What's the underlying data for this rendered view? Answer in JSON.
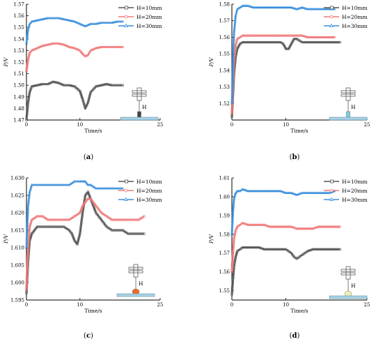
{
  "colors": {
    "h10": "#555555",
    "h20": "#f07878",
    "h30": "#3a8fdc",
    "axis": "#000000",
    "plate": "#a6d2e6",
    "sensor_a": "#444444",
    "sensor_b": "#7fd0e8",
    "sensor_c": "#f06a2a",
    "sensor_d": "#eef0b8"
  },
  "chart_data": [
    {
      "type": "line",
      "panel_label": "(a)",
      "xlabel": "Time/s",
      "ylabel": "P/V",
      "xlim": [
        0,
        25
      ],
      "ylim": [
        1.47,
        1.57
      ],
      "xticks": [
        "0",
        "10",
        "25"
      ],
      "yticks": [
        "1.47",
        "1.48",
        "1.49",
        "1.50",
        "1.51",
        "1.52",
        "1.53",
        "1.54",
        "1.55",
        "1.56",
        "1.57"
      ],
      "inset_label": "H",
      "legend_position": "top-right",
      "sensor_icon": "sensor_a",
      "series": [
        {
          "name": "H=10mm",
          "color_key": "h10",
          "marker": "square",
          "x": [
            0,
            0.3,
            0.6,
            1,
            2,
            3,
            4,
            5,
            6,
            7,
            8,
            9,
            10,
            10.5,
            11,
            11.5,
            12,
            13,
            14,
            15,
            16,
            17,
            18
          ],
          "y": [
            1.47,
            1.485,
            1.494,
            1.499,
            1.5,
            1.501,
            1.501,
            1.503,
            1.502,
            1.5,
            1.5,
            1.499,
            1.495,
            1.488,
            1.48,
            1.485,
            1.494,
            1.499,
            1.5,
            1.501,
            1.5,
            1.5,
            1.5
          ]
        },
        {
          "name": "H=20mm",
          "color_key": "h20",
          "marker": "circle",
          "x": [
            0,
            0.3,
            0.6,
            1,
            2,
            3,
            4,
            5,
            6,
            7,
            8,
            9,
            10,
            10.5,
            11,
            11.5,
            12,
            13,
            14,
            15,
            16,
            17,
            18
          ],
          "y": [
            1.512,
            1.522,
            1.528,
            1.53,
            1.532,
            1.534,
            1.535,
            1.536,
            1.536,
            1.535,
            1.533,
            1.532,
            1.53,
            1.527,
            1.525,
            1.526,
            1.53,
            1.532,
            1.533,
            1.533,
            1.533,
            1.533,
            1.533
          ]
        },
        {
          "name": "H=30mm",
          "color_key": "h30",
          "marker": "triangle",
          "x": [
            0,
            0.3,
            0.6,
            1,
            2,
            3,
            4,
            5,
            6,
            7,
            8,
            9,
            10,
            10.5,
            11,
            11.5,
            12,
            13,
            14,
            15,
            16,
            17,
            18
          ],
          "y": [
            1.536,
            1.548,
            1.553,
            1.555,
            1.556,
            1.557,
            1.558,
            1.558,
            1.558,
            1.557,
            1.556,
            1.555,
            1.553,
            1.552,
            1.551,
            1.552,
            1.553,
            1.553,
            1.554,
            1.554,
            1.554,
            1.555,
            1.555
          ]
        }
      ]
    },
    {
      "type": "line",
      "panel_label": "(b)",
      "xlabel": "Time/s",
      "ylabel": "P/V",
      "xlim": [
        0,
        25
      ],
      "ylim": [
        1.51,
        1.58
      ],
      "xticks": [
        "0",
        "10",
        "25"
      ],
      "yticks": [
        "1.52",
        "1.53",
        "1.54",
        "1.55",
        "1.56",
        "1.57",
        "1.58"
      ],
      "inset_label": "H",
      "legend_position": "top-right",
      "sensor_icon": "sensor_b",
      "series": [
        {
          "name": "H=10mm",
          "color_key": "h10",
          "marker": "square",
          "x": [
            0,
            0.2,
            0.4,
            0.7,
            1,
            1.5,
            2,
            3,
            4,
            5,
            6,
            7,
            8,
            9,
            9.5,
            10,
            10.5,
            11,
            11.5,
            12,
            13,
            14,
            15,
            16,
            17,
            18,
            19,
            20
          ],
          "y": [
            1.512,
            1.525,
            1.538,
            1.548,
            1.553,
            1.556,
            1.557,
            1.557,
            1.557,
            1.557,
            1.557,
            1.557,
            1.557,
            1.557,
            1.556,
            1.553,
            1.553,
            1.556,
            1.559,
            1.559,
            1.557,
            1.557,
            1.557,
            1.557,
            1.557,
            1.557,
            1.557,
            1.557
          ]
        },
        {
          "name": "H=20mm",
          "color_key": "h20",
          "marker": "circle",
          "x": [
            0,
            0.2,
            0.4,
            0.7,
            1,
            1.5,
            2,
            3,
            4,
            5,
            6,
            7,
            8,
            9,
            10,
            11,
            12,
            13,
            14,
            15,
            16,
            17,
            18,
            19
          ],
          "y": [
            1.514,
            1.53,
            1.545,
            1.555,
            1.559,
            1.56,
            1.561,
            1.561,
            1.561,
            1.561,
            1.561,
            1.561,
            1.561,
            1.561,
            1.561,
            1.561,
            1.561,
            1.561,
            1.56,
            1.56,
            1.56,
            1.56,
            1.56,
            1.56
          ]
        },
        {
          "name": "H=30mm",
          "color_key": "h30",
          "marker": "triangle",
          "x": [
            0,
            0.2,
            0.4,
            0.7,
            1,
            1.5,
            2,
            3,
            4,
            5,
            6,
            7,
            8,
            9,
            10,
            11,
            12,
            13,
            14,
            15,
            16,
            17,
            18,
            19
          ],
          "y": [
            1.52,
            1.545,
            1.563,
            1.573,
            1.577,
            1.578,
            1.579,
            1.579,
            1.578,
            1.578,
            1.578,
            1.578,
            1.578,
            1.578,
            1.578,
            1.578,
            1.577,
            1.578,
            1.577,
            1.577,
            1.577,
            1.577,
            1.577,
            1.577
          ]
        }
      ]
    },
    {
      "type": "line",
      "panel_label": "(c)",
      "xlabel": "Time/s",
      "ylabel": "P/V",
      "xlim": [
        0,
        25
      ],
      "ylim": [
        1.595,
        1.63
      ],
      "xticks": [
        "0",
        "10",
        "25"
      ],
      "yticks": [
        "1.595",
        "1.600",
        "1.605",
        "1.610",
        "1.615",
        "1.620",
        "1.625",
        "1.630"
      ],
      "inset_label": "H",
      "legend_position": "top-right",
      "sensor_icon": "sensor_c",
      "series": [
        {
          "name": "H=10mm",
          "color_key": "h10",
          "marker": "square",
          "x": [
            0,
            0.3,
            0.6,
            1,
            2,
            3,
            4,
            5,
            6,
            7,
            8,
            8.5,
            9,
            9.5,
            10,
            10.5,
            11,
            11.5,
            12,
            13,
            14,
            15,
            16,
            17,
            18,
            19,
            20,
            21,
            22
          ],
          "y": [
            1.597,
            1.606,
            1.612,
            1.614,
            1.616,
            1.616,
            1.616,
            1.616,
            1.616,
            1.616,
            1.615,
            1.614,
            1.612,
            1.611,
            1.614,
            1.62,
            1.625,
            1.626,
            1.624,
            1.62,
            1.618,
            1.616,
            1.615,
            1.615,
            1.615,
            1.614,
            1.614,
            1.614,
            1.614
          ]
        },
        {
          "name": "H=20mm",
          "color_key": "h20",
          "marker": "circle",
          "x": [
            0,
            0.3,
            0.6,
            1,
            2,
            3,
            4,
            5,
            6,
            7,
            8,
            9,
            10,
            10.5,
            11,
            11.5,
            12,
            13,
            14,
            15,
            16,
            17,
            18,
            19,
            20,
            21,
            22
          ],
          "y": [
            1.598,
            1.61,
            1.616,
            1.618,
            1.619,
            1.619,
            1.618,
            1.618,
            1.618,
            1.618,
            1.618,
            1.619,
            1.62,
            1.622,
            1.623,
            1.624,
            1.624,
            1.622,
            1.62,
            1.619,
            1.618,
            1.618,
            1.618,
            1.618,
            1.618,
            1.618,
            1.619
          ]
        },
        {
          "name": "H=30mm",
          "color_key": "h30",
          "marker": "triangle",
          "x": [
            0,
            0.3,
            0.6,
            1,
            2,
            3,
            4,
            5,
            6,
            7,
            8,
            9,
            10,
            10.5,
            11,
            11.5,
            12,
            13,
            14,
            15,
            16,
            17,
            18
          ],
          "y": [
            1.61,
            1.622,
            1.626,
            1.628,
            1.628,
            1.628,
            1.628,
            1.628,
            1.628,
            1.628,
            1.628,
            1.629,
            1.629,
            1.629,
            1.629,
            1.628,
            1.628,
            1.627,
            1.627,
            1.627,
            1.627,
            1.627,
            1.627
          ]
        }
      ]
    },
    {
      "type": "line",
      "panel_label": "(d)",
      "xlabel": "Time/s",
      "ylabel": "P/V",
      "xlim": [
        0,
        25
      ],
      "ylim": [
        1.545,
        1.61
      ],
      "xticks": [
        "0",
        "10",
        "25"
      ],
      "yticks": [
        "1.55",
        "1.56",
        "1.57",
        "1.58",
        "1.59",
        "1.60",
        "1.61"
      ],
      "inset_label": "H",
      "legend_position": "top-right",
      "sensor_icon": "sensor_d",
      "series": [
        {
          "name": "H=10mm",
          "color_key": "h10",
          "marker": "square",
          "x": [
            0,
            0.2,
            0.4,
            0.7,
            1,
            1.5,
            2,
            3,
            4,
            5,
            6,
            7,
            8,
            9,
            10,
            11,
            11.5,
            12,
            13,
            14,
            15,
            16,
            17,
            18,
            19,
            20
          ],
          "y": [
            1.548,
            1.556,
            1.563,
            1.568,
            1.571,
            1.572,
            1.573,
            1.573,
            1.573,
            1.573,
            1.572,
            1.572,
            1.572,
            1.572,
            1.572,
            1.57,
            1.568,
            1.567,
            1.569,
            1.571,
            1.572,
            1.572,
            1.572,
            1.572,
            1.572,
            1.572
          ]
        },
        {
          "name": "H=20mm",
          "color_key": "h20",
          "marker": "circle",
          "x": [
            0,
            0.2,
            0.4,
            0.7,
            1,
            1.5,
            2,
            3,
            4,
            5,
            6,
            7,
            8,
            9,
            10,
            11,
            12,
            13,
            14,
            15,
            16,
            17,
            18,
            19,
            20
          ],
          "y": [
            1.56,
            1.57,
            1.578,
            1.582,
            1.584,
            1.585,
            1.586,
            1.585,
            1.585,
            1.585,
            1.585,
            1.584,
            1.584,
            1.584,
            1.584,
            1.584,
            1.583,
            1.583,
            1.583,
            1.583,
            1.584,
            1.584,
            1.584,
            1.584,
            1.584
          ]
        },
        {
          "name": "H=30mm",
          "color_key": "h30",
          "marker": "triangle",
          "x": [
            0,
            0.2,
            0.4,
            0.7,
            1,
            1.5,
            2,
            3,
            4,
            5,
            6,
            7,
            8,
            9,
            10,
            11,
            12,
            13,
            14,
            15,
            16,
            17,
            18,
            19
          ],
          "y": [
            1.58,
            1.592,
            1.599,
            1.602,
            1.603,
            1.603,
            1.604,
            1.603,
            1.603,
            1.603,
            1.603,
            1.603,
            1.603,
            1.603,
            1.602,
            1.602,
            1.601,
            1.602,
            1.602,
            1.602,
            1.602,
            1.602,
            1.602,
            1.603
          ]
        }
      ]
    }
  ]
}
